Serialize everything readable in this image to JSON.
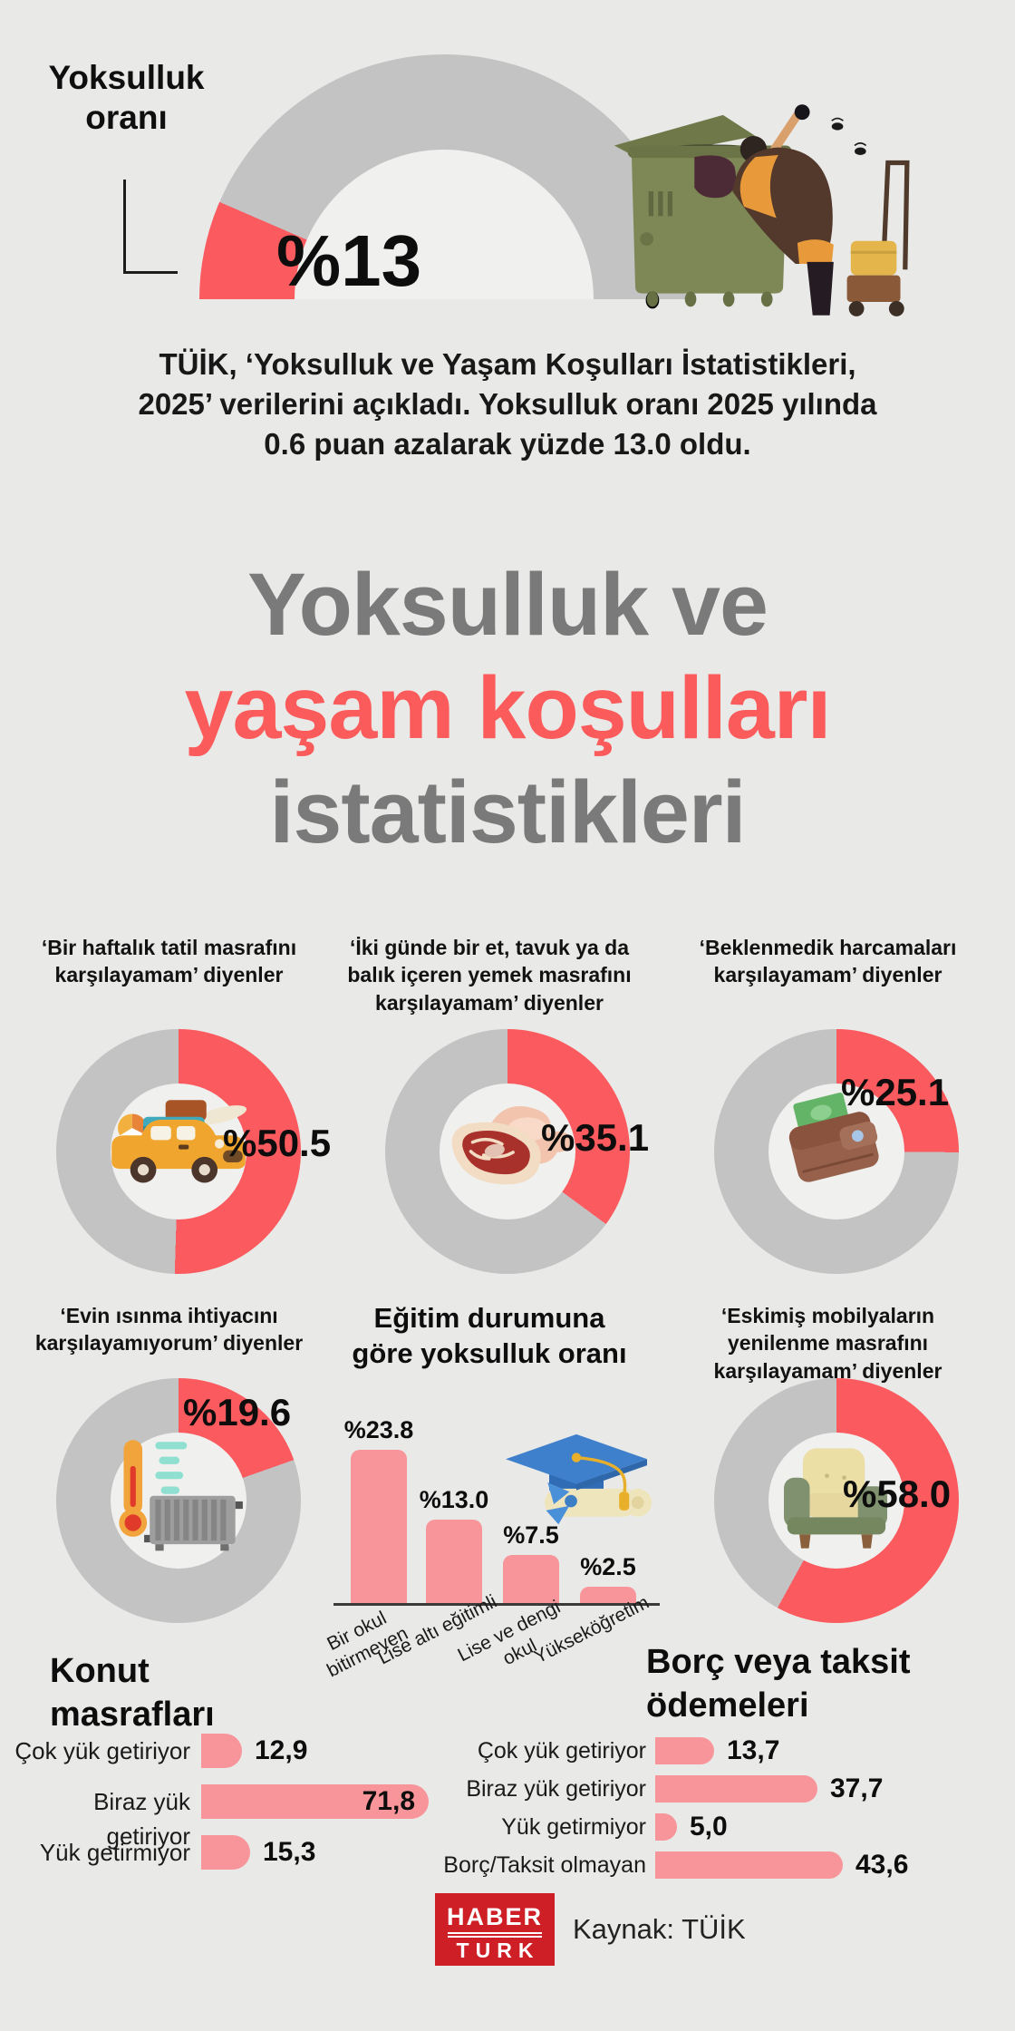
{
  "page": {
    "bg": "#e9e9e8",
    "accent_red": "#fb5a5e",
    "bar_salmon": "#f8959b",
    "donut_gray": "#c3c3c4",
    "title_gray": "#7a7a7a",
    "logo_red": "#cf1f26"
  },
  "header": {
    "gauge_label": "Yoksulluk oranı",
    "gauge_value_label": "%13",
    "intro": "TÜİK, ‘Yoksulluk ve Yaşam Koşulları İstatistikleri, 2025’ verilerini açıkladı. Yoksulluk oranı 2025 yılında 0.6 puan azalarak yüzde 13.0 oldu."
  },
  "title": {
    "line1": "Yoksulluk ve",
    "line2": "yaşam koşulları",
    "line3": "istatistikleri"
  },
  "chart_data": [
    {
      "id": "poverty-gauge",
      "type": "donut",
      "subtype": "half-gauge",
      "title": "Yoksulluk oranı",
      "value": 13,
      "value_label": "%13",
      "colors": {
        "filled": "#fb5a5e",
        "rest": "#c3c3c4"
      }
    },
    {
      "id": "holiday",
      "type": "donut",
      "title": "‘Bir haftalık tatil masrafını karşılayamam’ diyenler",
      "value": 50.5,
      "value_label": "%50.5",
      "icon": "car-luggage"
    },
    {
      "id": "meat",
      "type": "donut",
      "title": "‘İki günde bir et, tavuk ya da balık içeren yemek masrafını karşılayamam’ diyenler",
      "value": 35.1,
      "value_label": "%35.1",
      "icon": "meat"
    },
    {
      "id": "unexpected",
      "type": "donut",
      "title": "‘Beklenmedik harcamaları karşılayamam’ diyenler",
      "value": 25.1,
      "value_label": "%25.1",
      "icon": "wallet"
    },
    {
      "id": "heating",
      "type": "donut",
      "title": "‘Evin ısınma ihtiyacını karşılayamıyorum’ diyenler",
      "value": 19.6,
      "value_label": "%19.6",
      "icon": "heating"
    },
    {
      "id": "education",
      "type": "bar",
      "title": "Eğitim durumuna göre yoksulluk oranı",
      "categories": [
        "Bir okul bitirmeyen",
        "Lise altı eğitimli",
        "Lise ve dengi okul",
        "Yükseköğretim"
      ],
      "values": [
        23.8,
        13.0,
        7.5,
        2.5
      ],
      "value_labels": [
        "%23.8",
        "%13.0",
        "%7.5",
        "%2.5"
      ],
      "icon": "graduation",
      "ylim": [
        0,
        25
      ],
      "grid": false
    },
    {
      "id": "furniture",
      "type": "donut",
      "title": "‘Eskimiş mobilyaların yenilenme masrafını karşılayamam’ diyenler",
      "value": 58.0,
      "value_label": "%58.0",
      "icon": "armchair"
    },
    {
      "id": "housing",
      "type": "hbar",
      "title": "Konut masrafları",
      "categories": [
        "Çok yük getiriyor",
        "Biraz yük getiriyor",
        "Yük getirmiyor"
      ],
      "values": [
        12.9,
        71.8,
        15.3
      ],
      "value_labels": [
        "12,9",
        "71,8",
        "15,3"
      ]
    },
    {
      "id": "debt",
      "type": "hbar",
      "title": "Borç veya taksit ödemeleri",
      "categories": [
        "Çok yük getiriyor",
        "Biraz yük getiriyor",
        "Yük getirmiyor",
        "Borç/Taksit olmayan"
      ],
      "values": [
        13.7,
        37.7,
        5.0,
        43.6
      ],
      "value_labels": [
        "13,7",
        "37,7",
        "5,0",
        "43,6"
      ]
    }
  ],
  "footer": {
    "logo_line1": "HABER",
    "logo_line2": "TURK",
    "source": "Kaynak: TÜİK"
  }
}
